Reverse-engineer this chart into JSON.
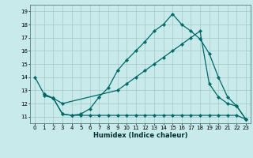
{
  "xlabel": "Humidex (Indice chaleur)",
  "xlim": [
    -0.5,
    23.5
  ],
  "ylim": [
    10.5,
    19.5
  ],
  "yticks": [
    11,
    12,
    13,
    14,
    15,
    16,
    17,
    18,
    19
  ],
  "xticks": [
    0,
    1,
    2,
    3,
    4,
    5,
    6,
    7,
    8,
    9,
    10,
    11,
    12,
    13,
    14,
    15,
    16,
    17,
    18,
    19,
    20,
    21,
    22,
    23
  ],
  "bg_color": "#c8eaea",
  "grid_color": "#a0c8c8",
  "line_color": "#006868",
  "line1_x": [
    0,
    1,
    2,
    3,
    4,
    5,
    6,
    7,
    8,
    9,
    10,
    11,
    12,
    13,
    14,
    15,
    16,
    17,
    18,
    19,
    20,
    21,
    22,
    23
  ],
  "line1_y": [
    14.0,
    12.7,
    12.4,
    11.2,
    11.1,
    11.2,
    11.6,
    12.5,
    13.2,
    14.5,
    15.3,
    16.0,
    16.7,
    17.5,
    18.0,
    18.8,
    18.0,
    17.5,
    16.9,
    15.8,
    14.0,
    12.5,
    11.8,
    10.8
  ],
  "line2_x": [
    1,
    2,
    3,
    9,
    10,
    11,
    12,
    13,
    14,
    15,
    16,
    17,
    18,
    19,
    20,
    21,
    22,
    23
  ],
  "line2_y": [
    12.6,
    12.4,
    12.0,
    13.0,
    13.5,
    14.0,
    14.5,
    15.0,
    15.5,
    16.0,
    16.5,
    17.0,
    17.5,
    13.5,
    12.5,
    12.0,
    11.8,
    10.8
  ],
  "line3_x": [
    1,
    2,
    3,
    4,
    5,
    6,
    7,
    8,
    9,
    10,
    11,
    12,
    13,
    14,
    15,
    16,
    17,
    18,
    19,
    20,
    21,
    22,
    23
  ],
  "line3_y": [
    12.7,
    12.4,
    11.2,
    11.1,
    11.1,
    11.1,
    11.1,
    11.1,
    11.1,
    11.1,
    11.1,
    11.1,
    11.1,
    11.1,
    11.1,
    11.1,
    11.1,
    11.1,
    11.1,
    11.1,
    11.1,
    11.1,
    10.8
  ]
}
